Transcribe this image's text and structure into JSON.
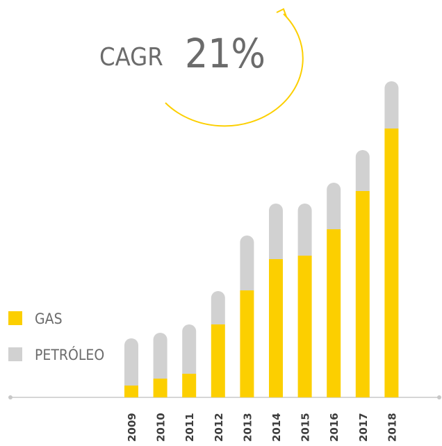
{
  "chart_data": {
    "type": "stacked_bar",
    "annotations": {
      "label": "CAGR",
      "value": "21%"
    },
    "categories": [
      "2009",
      "2010",
      "2011",
      "2012",
      "2013",
      "2014",
      "2015",
      "2016",
      "2017",
      "2018"
    ],
    "series": [
      {
        "name": "GAS",
        "color": "#fccf00",
        "values": [
          17,
          27,
          34,
          105,
          154,
          199,
          204,
          242,
          297,
          387
        ]
      },
      {
        "name": "PETRÓLEO",
        "color": "#d1d1d1",
        "values": [
          68,
          66,
          71,
          48,
          79,
          80,
          75,
          67,
          59,
          68
        ]
      }
    ]
  }
}
